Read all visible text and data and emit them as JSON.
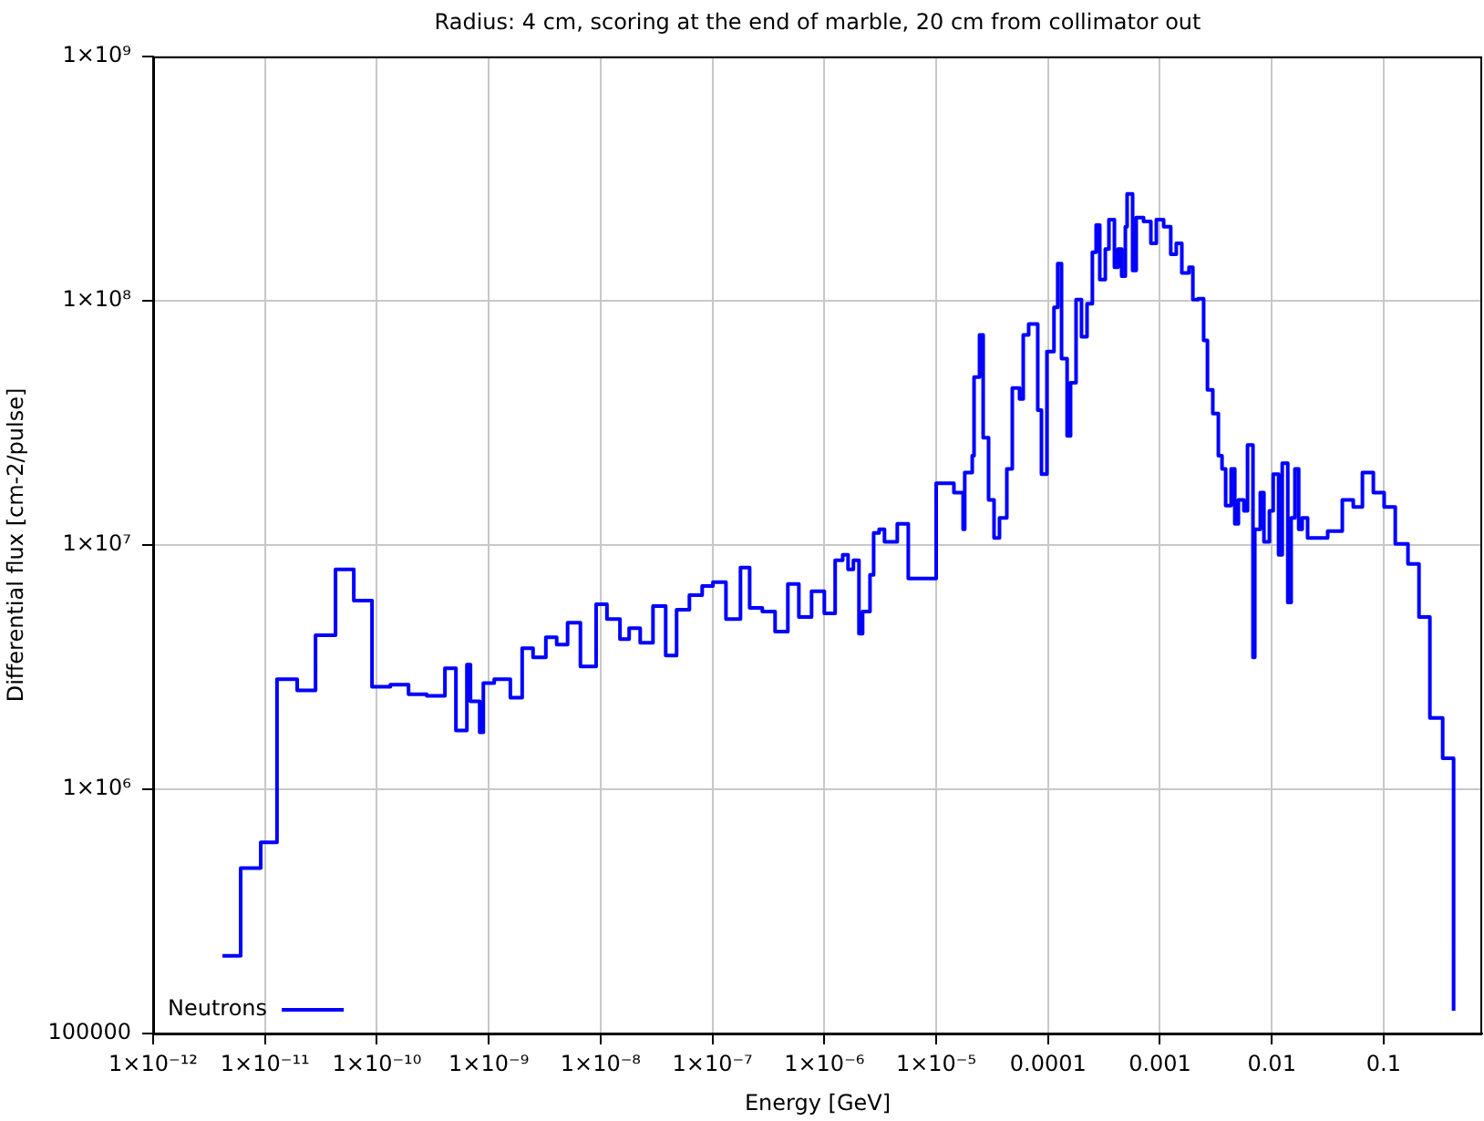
{
  "chart_data": {
    "type": "step",
    "title": "Radius: 4 cm, scoring at the end of marble, 20 cm from collimator out",
    "xlabel": "Energy [GeV]",
    "ylabel": "Differential flux [cm-2/pulse]",
    "x": [
      4.17e-12,
      6.06e-12,
      9.16e-12,
      1.28e-11,
      1.94e-11,
      2.83e-11,
      4.27e-11,
      6.22e-11,
      9.05e-11,
      1.32e-10,
      1.92e-10,
      2.79e-10,
      4.06e-10,
      5.09e-10,
      6.38e-10,
      6.87e-10,
      8.3e-10,
      8.95e-10,
      1.12e-09,
      1.56e-09,
      1.99e-09,
      2.49e-09,
      3.24e-09,
      4.05e-09,
      5.07e-09,
      6.6e-09,
      9.12e-09,
      1.14e-08,
      1.49e-08,
      1.8e-08,
      2.26e-08,
      2.94e-08,
      3.82e-08,
      4.78e-08,
      6.22e-08,
      8.09e-08,
      1.01e-07,
      1.32e-07,
      1.78e-07,
      2.15e-07,
      2.79e-07,
      3.63e-07,
      4.72e-07,
      5.92e-07,
      7.69e-07,
      1e-06,
      1.25e-06,
      1.46e-06,
      1.63e-06,
      1.82e-06,
      2.04e-06,
      2.2e-06,
      2.56e-06,
      2.76e-06,
      3.09e-06,
      3.45e-06,
      4.49e-06,
      5.63e-06,
      1e-05,
      1.44e-05,
      1.74e-05,
      1.8e-05,
      2.1e-05,
      2.18e-05,
      2.44e-05,
      2.63e-05,
      2.94e-05,
      3.29e-05,
      3.68e-05,
      4.28e-05,
      4.79e-05,
      5.56e-05,
      6e-05,
      6.71e-05,
      8.09e-05,
      8.73e-05,
      9.77e-05,
      0.000113,
      0.000122,
      0.000132,
      0.000148,
      0.000159,
      0.000178,
      0.000199,
      0.000223,
      0.000249,
      0.000269,
      0.00029,
      0.000325,
      0.00035,
      0.000392,
      0.000422,
      0.000455,
      0.000491,
      0.000509,
      0.00057,
      0.000614,
      0.000714,
      0.00083,
      0.000929,
      0.00108,
      0.00125,
      0.0014,
      0.00157,
      0.00182,
      0.00197,
      0.0022,
      0.00246,
      0.00266,
      0.00297,
      0.00333,
      0.00359,
      0.00387,
      0.00433,
      0.00467,
      0.00503,
      0.00563,
      0.00607,
      0.00679,
      0.00705,
      0.00789,
      0.00851,
      0.00952,
      0.0103,
      0.0115,
      0.0124,
      0.0139,
      0.0149,
      0.0161,
      0.0174,
      0.0187,
      0.0209,
      0.0316,
      0.0427,
      0.0535,
      0.0646,
      0.0809,
      0.101,
      0.127,
      0.165,
      0.207,
      0.259,
      0.337,
      0.422
    ],
    "series": [
      {
        "name": "Neutrons",
        "color": "#0000ff",
        "values": [
          208000.0,
          476000.0,
          606000.0,
          2820000.0,
          2540000.0,
          4270000.0,
          7940000.0,
          5920000.0,
          2630000.0,
          2680000.0,
          2450000.0,
          2410000.0,
          3130000.0,
          1740000.0,
          3240000.0,
          2290000.0,
          1710000.0,
          2720000.0,
          2820000.0,
          2370000.0,
          3780000.0,
          3470000.0,
          4190000.0,
          3910000.0,
          4810000.0,
          3180000.0,
          5720000.0,
          4980000.0,
          4120000.0,
          4570000.0,
          3980000.0,
          5620000.0,
          3530000.0,
          5430000.0,
          6240000.0,
          6800000.0,
          7040000.0,
          4980000.0,
          8080000.0,
          5530000.0,
          5340000.0,
          4420000.0,
          6920000.0,
          5070000.0,
          6460000.0,
          5250000.0,
          8660000.0,
          9120000.0,
          7940000.0,
          8660000.0,
          4340000.0,
          5340000.0,
          7540000.0,
          11200000.0,
          11600000.0,
          10300000.0,
          12200000.0,
          7290000.0,
          17900000.0,
          16400000.0,
          11600000.0,
          19800000.0,
          23200000.0,
          48700000.0,
          72400000.0,
          27500000.0,
          15300000.0,
          10700000.0,
          12900000.0,
          20500000.0,
          43900000.0,
          39600000.0,
          72400000.0,
          80400000.0,
          35700000.0,
          19500000.0,
          62000000.0,
          93900000.0,
          142000000.0,
          57900000.0,
          28000000.0,
          46200000.0,
          101000000.0,
          71200000.0,
          97200000.0,
          158000000.0,
          204000000.0,
          122000000.0,
          163000000.0,
          215000000.0,
          137000000.0,
          163000000.0,
          126000000.0,
          201000000.0,
          274000000.0,
          133000000.0,
          219000000.0,
          211000000.0,
          172000000.0,
          215000000.0,
          201000000.0,
          155000000.0,
          172000000.0,
          130000000.0,
          137000000.0,
          101000000.0,
          102000000.0,
          68800000.0,
          43200000.0,
          34500000.0,
          23200000.0,
          20500000.0,
          14500000.0,
          20500000.0,
          12200000.0,
          15300000.0,
          13800000.0,
          25700000.0,
          3470000.0,
          11600000.0,
          16400000.0,
          10300000.0,
          13800000.0,
          19500000.0,
          9120000.0,
          21600000.0,
          5820000.0,
          12900000.0,
          20500000.0,
          11600000.0,
          12900000.0,
          10700000.0,
          11400000.0,
          15300000.0,
          14300000.0,
          19800000.0,
          16400000.0,
          14300000.0,
          10100000.0,
          8370000.0,
          5070000.0,
          1960000.0,
          1340000.0,
          124000.0
        ]
      }
    ],
    "xlim": [
      1e-12,
      0.76
    ],
    "ylim": [
      100000,
      1000000000.0
    ],
    "xticks": [
      {
        "value": 1e-12,
        "label": "1×10⁻¹²"
      },
      {
        "value": 1e-11,
        "label": "1×10⁻¹¹"
      },
      {
        "value": 1e-10,
        "label": "1×10⁻¹⁰"
      },
      {
        "value": 1e-09,
        "label": "1×10⁻⁹"
      },
      {
        "value": 1e-08,
        "label": "1×10⁻⁸"
      },
      {
        "value": 1e-07,
        "label": "1×10⁻⁷"
      },
      {
        "value": 1e-06,
        "label": "1×10⁻⁶"
      },
      {
        "value": 1e-05,
        "label": "1×10⁻⁵"
      },
      0.0001,
      0.001,
      0.01,
      0.1
    ],
    "yticks": [
      100000,
      {
        "value": 1000000.0,
        "label": "1×10⁶"
      },
      {
        "value": 10000000.0,
        "label": "1×10⁷"
      },
      {
        "value": 100000000.0,
        "label": "1×10⁸"
      },
      {
        "value": 1000000000.0,
        "label": "1×10⁹"
      }
    ],
    "log": "xy",
    "grid": true,
    "legend": "bottom left",
    "marker": "none"
  }
}
